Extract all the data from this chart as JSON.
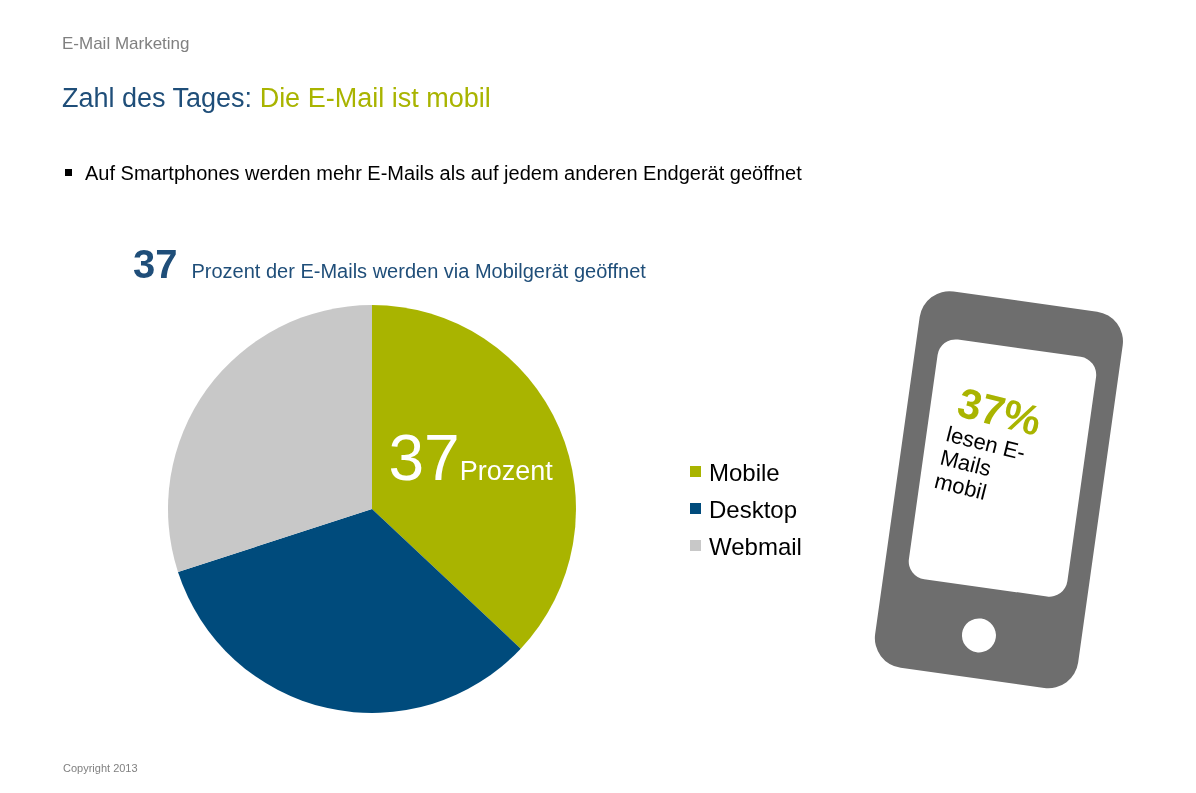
{
  "chart_data": {
    "type": "pie",
    "title": "Zahl des Tages: Die E-Mail ist mobil",
    "subtitle": "Auf Smartphones werden mehr E-Mails als auf jedem anderen Endgerät geöffnet",
    "categories": [
      "Mobile",
      "Desktop",
      "Webmail"
    ],
    "values": [
      37,
      33,
      30
    ],
    "colors": [
      "#a9b400",
      "#004b7c",
      "#c8c8c8"
    ],
    "value_labels": [
      "37Prozent",
      null,
      null
    ],
    "legend": "right",
    "annotations": [
      "E-Mail Marketing",
      "37 Prozent der E-Mails werden via Mobilgerät geöffnet",
      "37% lesen E-Mails mobil",
      "Copyright 2013"
    ]
  }
}
